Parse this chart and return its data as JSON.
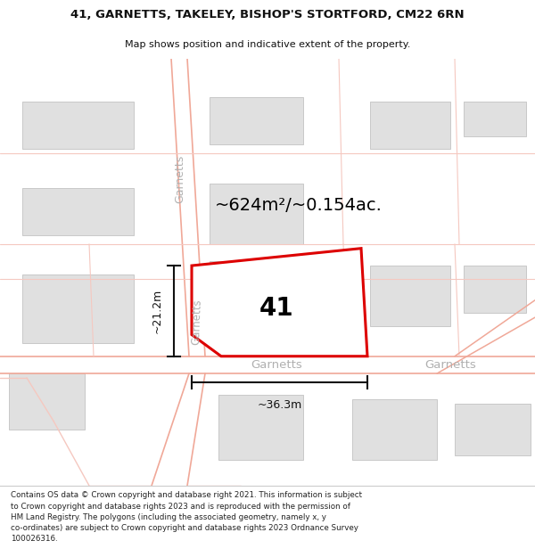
{
  "title_line1": "41, GARNETTS, TAKELEY, BISHOP'S STORTFORD, CM22 6RN",
  "title_line2": "Map shows position and indicative extent of the property.",
  "area_label": "~624m²/~0.154ac.",
  "plot_number": "41",
  "dim_horiz": "~36.3m",
  "dim_vert": "~21.2m",
  "copyright_text": "Contains OS data © Crown copyright and database right 2021. This information is subject\nto Crown copyright and database rights 2023 and is reproduced with the permission of\nHM Land Registry. The polygons (including the associated geometry, namely x, y\nco-ordinates) are subject to Crown copyright and database rights 2023 Ordnance Survey\n100026316.",
  "bg_color": "#ffffff",
  "map_bg": "#ffffff",
  "road_line_color": "#f0a898",
  "road_line_light": "#f5c8c0",
  "building_color": "#e0e0e0",
  "building_edge": "#c8c8c8",
  "plot_color": "#dd0000",
  "street_label_color": "#b0b0b0",
  "dim_color": "#111111",
  "title_color": "#111111",
  "copyright_color": "#222222"
}
